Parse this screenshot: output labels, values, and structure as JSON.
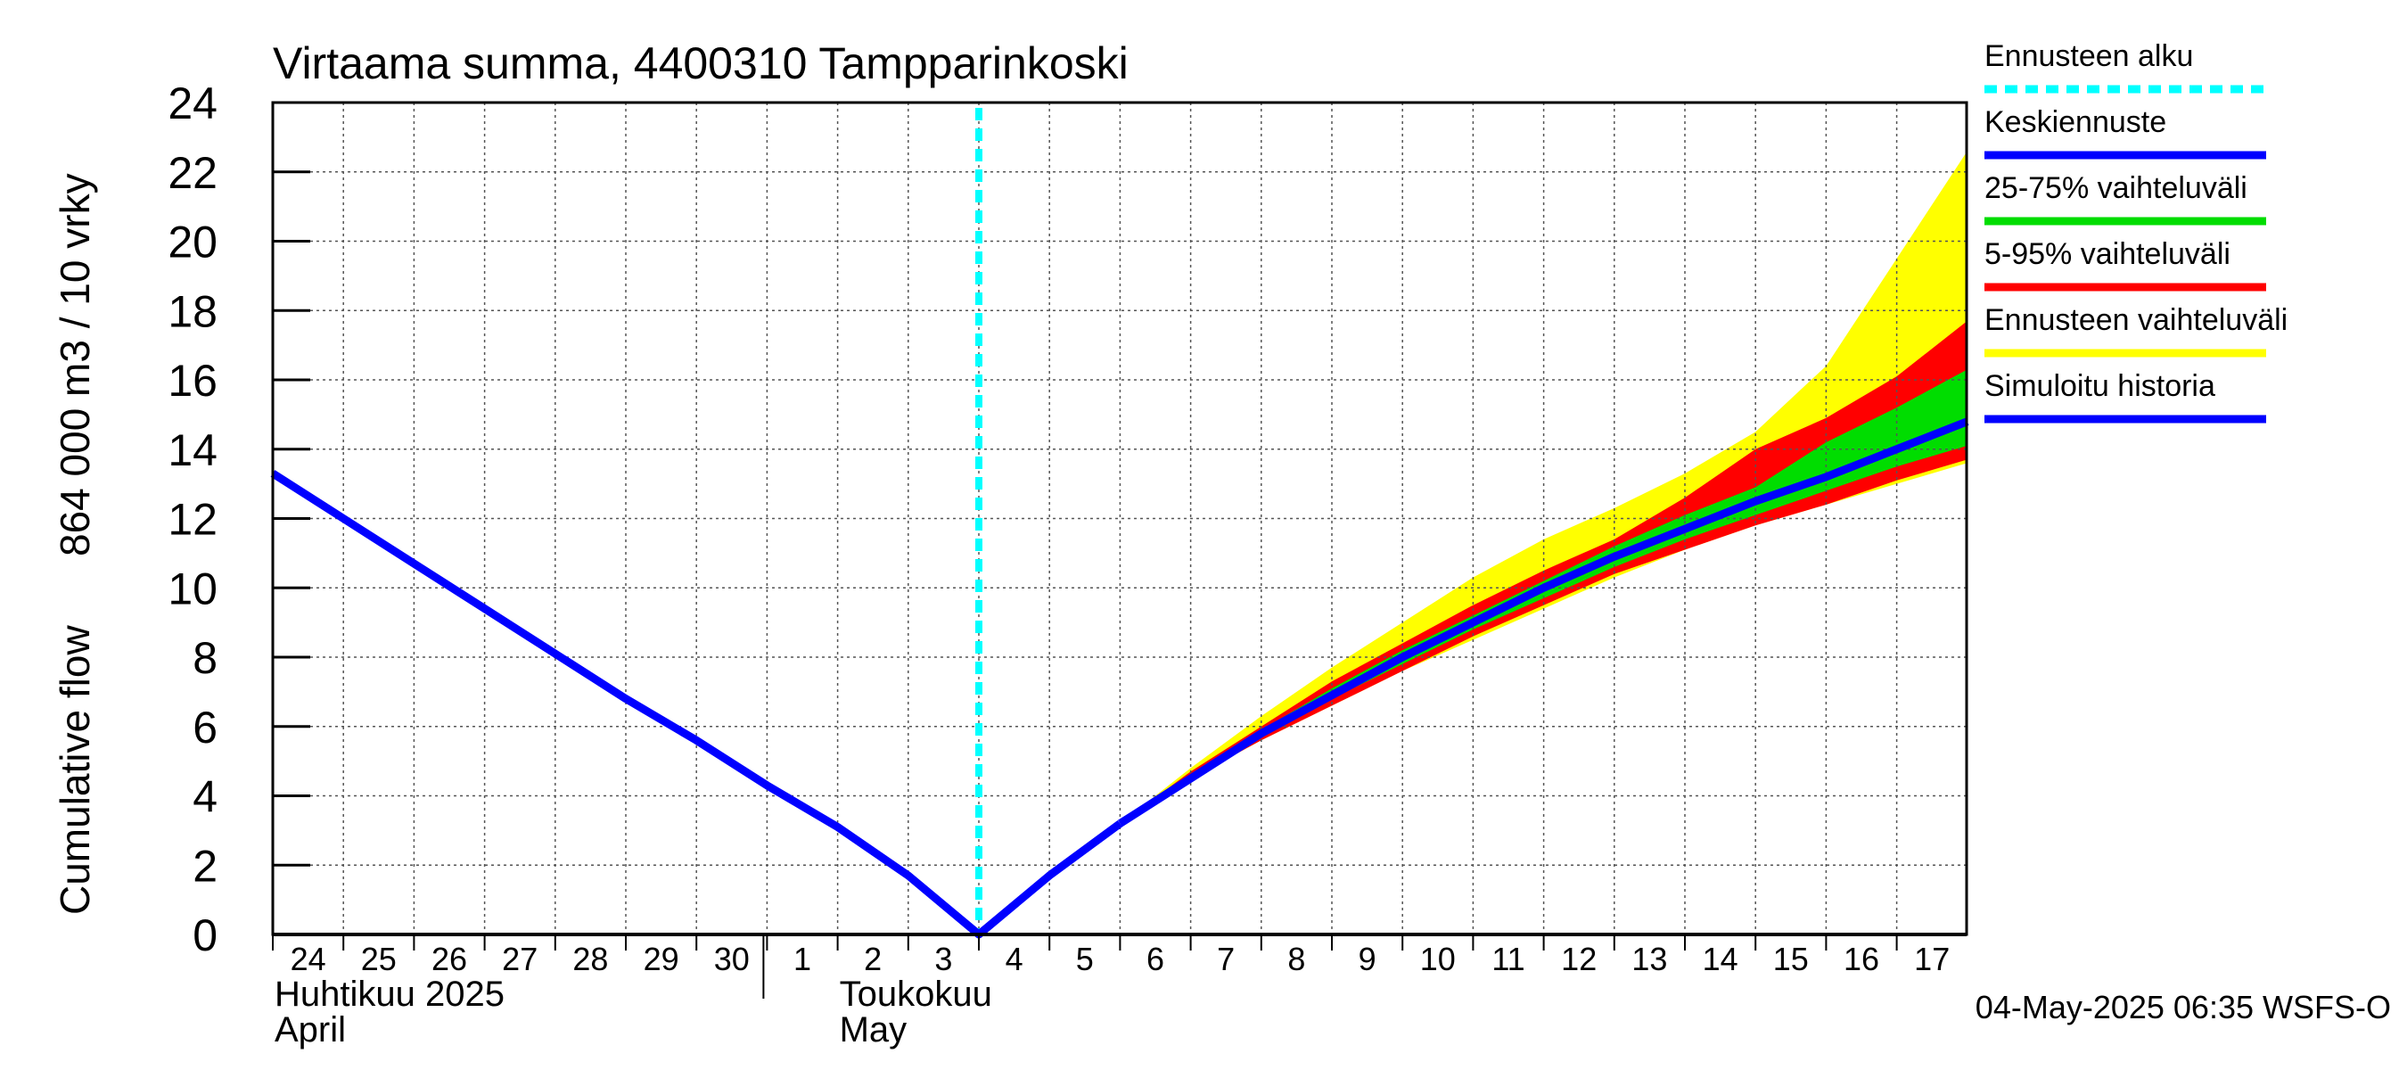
{
  "chart_data": {
    "type": "area",
    "title": "Virtaama summa, 4400310 Tampparinkoski",
    "ylabel_line1": "Cumulative flow",
    "ylabel_line2": "864 000 m3 / 10 vrky",
    "ylim": [
      0,
      24
    ],
    "yticks": [
      0,
      2,
      4,
      6,
      8,
      10,
      12,
      14,
      16,
      18,
      20,
      22,
      24
    ],
    "x_days": [
      {
        "day": "24",
        "pos": 0
      },
      {
        "day": "25",
        "pos": 1
      },
      {
        "day": "26",
        "pos": 2
      },
      {
        "day": "27",
        "pos": 3
      },
      {
        "day": "28",
        "pos": 4
      },
      {
        "day": "29",
        "pos": 5
      },
      {
        "day": "30",
        "pos": 6
      },
      {
        "day": "1",
        "pos": 7
      },
      {
        "day": "2",
        "pos": 8
      },
      {
        "day": "3",
        "pos": 9
      },
      {
        "day": "4",
        "pos": 10
      },
      {
        "day": "5",
        "pos": 11
      },
      {
        "day": "6",
        "pos": 12
      },
      {
        "day": "7",
        "pos": 13
      },
      {
        "day": "8",
        "pos": 14
      },
      {
        "day": "9",
        "pos": 15
      },
      {
        "day": "10",
        "pos": 16
      },
      {
        "day": "11",
        "pos": 17
      },
      {
        "day": "12",
        "pos": 18
      },
      {
        "day": "13",
        "pos": 19
      },
      {
        "day": "14",
        "pos": 20
      },
      {
        "day": "15",
        "pos": 21
      },
      {
        "day": "16",
        "pos": 22
      },
      {
        "day": "17",
        "pos": 23
      }
    ],
    "xlim": [
      0,
      24
    ],
    "month_labels": [
      {
        "line1": "Huhtikuu  2025",
        "line2": "April",
        "pos": 0
      },
      {
        "line1": "Toukokuu",
        "line2": "May",
        "pos": 8
      }
    ],
    "month_separators": [
      7
    ],
    "forecast_start": 10,
    "grid": true,
    "legend_position": "right",
    "series": [
      {
        "name": "Ennusteen vaihteluväli",
        "color": "#ffff00",
        "kind": "band",
        "x": [
          12,
          13,
          14,
          15,
          16,
          17,
          18,
          19,
          20,
          21,
          22,
          23,
          24
        ],
        "low": [
          3.2,
          4.5,
          5.6,
          6.6,
          7.6,
          8.5,
          9.4,
          10.3,
          11.1,
          11.8,
          12.4,
          13.0,
          13.6
        ],
        "high": [
          3.2,
          4.8,
          6.3,
          7.7,
          9.0,
          10.3,
          11.4,
          12.3,
          13.3,
          14.5,
          16.4,
          19.5,
          22.6
        ]
      },
      {
        "name": "5-95% vaihteluväli",
        "color": "#ff0000",
        "kind": "band",
        "x": [
          12,
          13,
          14,
          15,
          16,
          17,
          18,
          19,
          20,
          21,
          22,
          23,
          24
        ],
        "low": [
          3.2,
          4.5,
          5.6,
          6.6,
          7.6,
          8.6,
          9.5,
          10.4,
          11.1,
          11.8,
          12.4,
          13.1,
          13.7
        ],
        "high": [
          3.2,
          4.7,
          6.0,
          7.3,
          8.4,
          9.5,
          10.5,
          11.4,
          12.6,
          14.0,
          14.9,
          16.1,
          17.7
        ]
      },
      {
        "name": "25-75% vaihteluväli",
        "color": "#00dd00",
        "kind": "band",
        "x": [
          12,
          13,
          14,
          15,
          16,
          17,
          18,
          19,
          20,
          21,
          22,
          23,
          24
        ],
        "low": [
          3.2,
          4.5,
          5.7,
          6.8,
          7.8,
          8.8,
          9.7,
          10.6,
          11.4,
          12.1,
          12.8,
          13.5,
          14.1
        ],
        "high": [
          3.2,
          4.6,
          5.9,
          7.1,
          8.2,
          9.2,
          10.2,
          11.2,
          12.1,
          12.9,
          14.2,
          15.2,
          16.3
        ]
      },
      {
        "name": "Keskiennuste",
        "color": "#0000ff",
        "kind": "line",
        "x": [
          12,
          13,
          14,
          15,
          16,
          17,
          18,
          19,
          20,
          21,
          22,
          23,
          24
        ],
        "y": [
          3.2,
          4.5,
          5.8,
          6.9,
          8.0,
          9.0,
          10.0,
          10.9,
          11.7,
          12.5,
          13.2,
          14.0,
          14.8
        ]
      },
      {
        "name": "Simuloitu historia",
        "color": "#0000ff",
        "kind": "line",
        "x": [
          0,
          1,
          2,
          3,
          4,
          5,
          6,
          7,
          8,
          9,
          10,
          11,
          12
        ],
        "y": [
          13.3,
          12.0,
          10.7,
          9.4,
          8.1,
          6.8,
          5.6,
          4.3,
          3.1,
          1.7,
          0.0,
          1.7,
          3.2
        ]
      }
    ],
    "forecast_start_label": "Ennusteen alku",
    "forecast_start_color": "#00ffff"
  },
  "footer_timestamp": "04-May-2025 06:35 WSFS-O"
}
